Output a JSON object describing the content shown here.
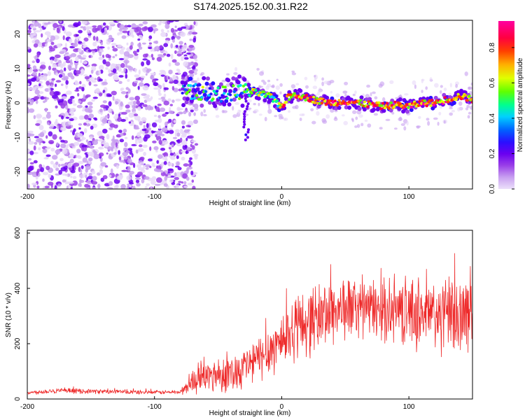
{
  "title": "S174.2025.152.00.31.R22",
  "chart_data": [
    {
      "type": "heatmap",
      "xlabel": "Height of straight line (km)",
      "ylabel": "Frequency (Hz)",
      "xlim": [
        -200,
        150
      ],
      "ylim": [
        -25,
        24
      ],
      "xticks": [
        -200,
        -100,
        0,
        100
      ],
      "yticks": [
        -20,
        -10,
        0,
        10,
        20
      ],
      "colorbar": {
        "label": "Normalized spectral amplitude",
        "range": [
          0.0,
          0.95
        ],
        "ticks": [
          0.0,
          0.2,
          0.4,
          0.6,
          0.8
        ],
        "colormap": [
          "#e8d8f8",
          "#c8a0f0",
          "#9a40e8",
          "#6a00f0",
          "#2a10ff",
          "#0060ff",
          "#00d0ff",
          "#00ff90",
          "#60ff00",
          "#e0ff00",
          "#ffb000",
          "#ff4000",
          "#ff0040",
          "#ff00a0"
        ]
      },
      "ridge": {
        "x": [
          -75,
          -60,
          -45,
          -30,
          -20,
          -10,
          -5,
          0,
          5,
          10,
          20,
          30,
          40,
          50,
          60,
          70,
          80,
          90,
          100,
          110,
          120,
          130,
          140,
          150
        ],
        "freq": [
          3.5,
          3,
          2.5,
          3.5,
          3,
          2,
          0.5,
          -1,
          1.5,
          2.5,
          1.5,
          0.5,
          0,
          0.5,
          0,
          -0.5,
          -1,
          -0.5,
          -1,
          0,
          0,
          1,
          2,
          1
        ]
      },
      "noise_region_x": [
        -200,
        -75
      ]
    },
    {
      "type": "line",
      "xlabel": "Height of straight line (km)",
      "ylabel": "SNR (10 * v/v)",
      "xlim": [
        -200,
        150
      ],
      "ylim": [
        0,
        610
      ],
      "xticks": [
        -200,
        -100,
        0,
        100
      ],
      "yticks": [
        0,
        200,
        400,
        600
      ],
      "color": "#ee2a2a",
      "envelope": {
        "x": [
          -200,
          -180,
          -150,
          -120,
          -100,
          -80,
          -75,
          -70,
          -60,
          -50,
          -40,
          -30,
          -20,
          -10,
          0,
          10,
          20,
          30,
          40,
          50,
          60,
          70,
          80,
          90,
          100,
          110,
          120,
          130,
          140,
          150
        ],
        "mean": [
          22,
          30,
          28,
          25,
          24,
          25,
          40,
          65,
          80,
          90,
          95,
          115,
          140,
          175,
          215,
          255,
          280,
          300,
          320,
          330,
          330,
          325,
          320,
          320,
          315,
          310,
          300,
          300,
          300,
          310
        ],
        "spread": [
          8,
          12,
          10,
          10,
          8,
          10,
          30,
          50,
          70,
          80,
          80,
          90,
          100,
          110,
          130,
          140,
          150,
          150,
          150,
          140,
          130,
          130,
          130,
          140,
          150,
          160,
          170,
          170,
          170,
          160
        ]
      }
    }
  ]
}
